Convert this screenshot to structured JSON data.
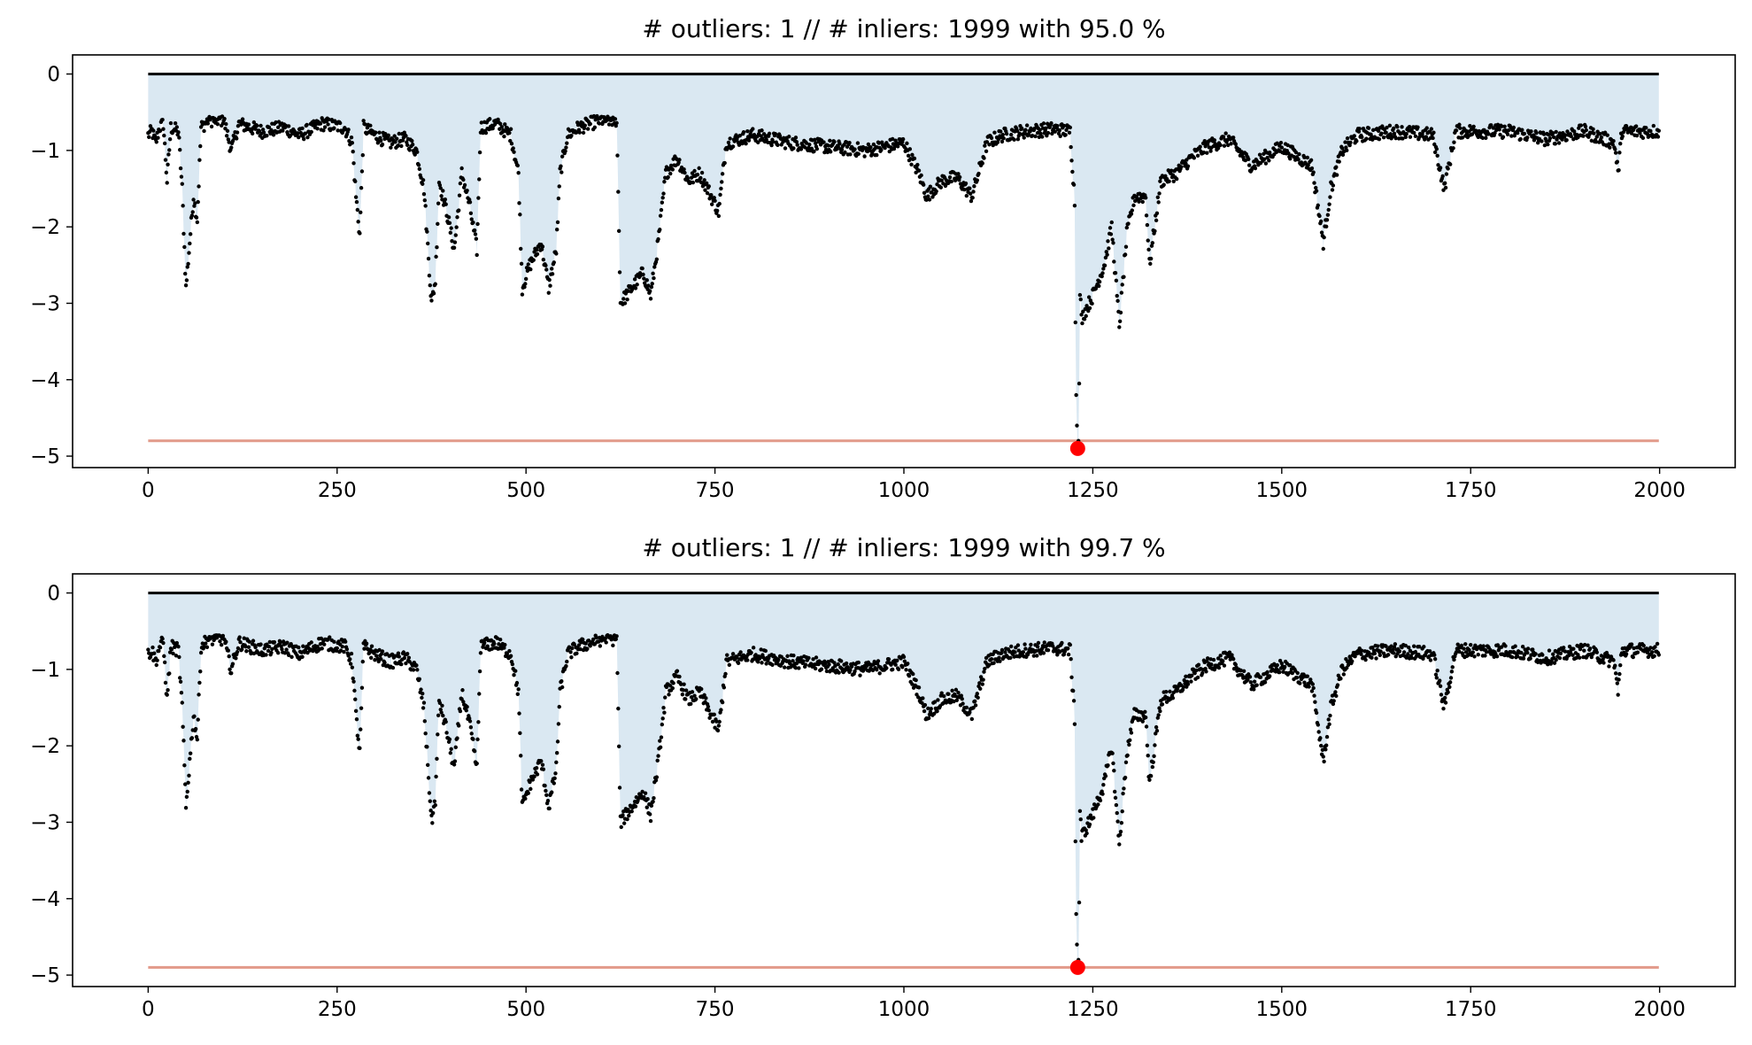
{
  "colors": {
    "points": "#000000",
    "fill": "#dae8f2",
    "threshold": "#e29a8a",
    "baseline": "#000000",
    "outlier": "#ff0000"
  },
  "chart_data": [
    {
      "type": "scatter",
      "title": "# outliers: 1 // # inliers: 1999 with 95.0 %",
      "xlim": [
        -100,
        2100
      ],
      "ylim": [
        -5.15,
        0.25
      ],
      "x_ticks": [
        0,
        250,
        500,
        750,
        1000,
        1250,
        1500,
        1750,
        2000
      ],
      "y_ticks": [
        0,
        -1,
        -2,
        -3,
        -4,
        -5
      ],
      "threshold": -4.8,
      "baseline": 0,
      "outliers": [
        {
          "x": 1230,
          "y": -4.9
        }
      ],
      "n_points": 2000,
      "profile": [
        [
          0,
          -0.8
        ],
        [
          5,
          -0.75
        ],
        [
          10,
          -0.9
        ],
        [
          15,
          -0.7
        ],
        [
          20,
          -0.65
        ],
        [
          25,
          -1.4
        ],
        [
          30,
          -0.7
        ],
        [
          40,
          -0.75
        ],
        [
          45,
          -1.5
        ],
        [
          50,
          -2.8
        ],
        [
          55,
          -2.2
        ],
        [
          60,
          -1.6
        ],
        [
          65,
          -1.9
        ],
        [
          70,
          -0.7
        ],
        [
          80,
          -0.6
        ],
        [
          100,
          -0.6
        ],
        [
          110,
          -1.0
        ],
        [
          120,
          -0.65
        ],
        [
          150,
          -0.75
        ],
        [
          180,
          -0.7
        ],
        [
          200,
          -0.8
        ],
        [
          230,
          -0.65
        ],
        [
          260,
          -0.7
        ],
        [
          270,
          -0.9
        ],
        [
          275,
          -1.6
        ],
        [
          280,
          -2.1
        ],
        [
          285,
          -0.7
        ],
        [
          300,
          -0.8
        ],
        [
          320,
          -0.9
        ],
        [
          340,
          -0.85
        ],
        [
          355,
          -1.0
        ],
        [
          365,
          -1.5
        ],
        [
          375,
          -3.0
        ],
        [
          380,
          -2.7
        ],
        [
          385,
          -1.4
        ],
        [
          395,
          -1.8
        ],
        [
          405,
          -2.3
        ],
        [
          415,
          -1.3
        ],
        [
          425,
          -1.7
        ],
        [
          435,
          -2.3
        ],
        [
          440,
          -0.7
        ],
        [
          460,
          -0.65
        ],
        [
          480,
          -0.8
        ],
        [
          490,
          -1.3
        ],
        [
          495,
          -2.8
        ],
        [
          505,
          -2.5
        ],
        [
          520,
          -2.2
        ],
        [
          530,
          -2.8
        ],
        [
          540,
          -2.3
        ],
        [
          545,
          -1.3
        ],
        [
          555,
          -0.8
        ],
        [
          570,
          -0.7
        ],
        [
          600,
          -0.6
        ],
        [
          620,
          -0.6
        ],
        [
          625,
          -3.0
        ],
        [
          640,
          -2.8
        ],
        [
          655,
          -2.6
        ],
        [
          665,
          -2.9
        ],
        [
          675,
          -2.2
        ],
        [
          685,
          -1.3
        ],
        [
          700,
          -1.1
        ],
        [
          715,
          -1.4
        ],
        [
          730,
          -1.3
        ],
        [
          745,
          -1.6
        ],
        [
          755,
          -1.8
        ],
        [
          765,
          -0.9
        ],
        [
          800,
          -0.8
        ],
        [
          850,
          -0.9
        ],
        [
          900,
          -0.95
        ],
        [
          950,
          -1.0
        ],
        [
          1000,
          -0.9
        ],
        [
          1020,
          -1.3
        ],
        [
          1030,
          -1.6
        ],
        [
          1050,
          -1.4
        ],
        [
          1070,
          -1.35
        ],
        [
          1090,
          -1.6
        ],
        [
          1110,
          -0.9
        ],
        [
          1130,
          -0.8
        ],
        [
          1160,
          -0.75
        ],
        [
          1200,
          -0.72
        ],
        [
          1220,
          -0.75
        ],
        [
          1225,
          -1.5
        ],
        [
          1230,
          -2.3
        ],
        [
          1235,
          -3.2
        ],
        [
          1250,
          -2.9
        ],
        [
          1265,
          -2.5
        ],
        [
          1275,
          -2.0
        ],
        [
          1285,
          -3.3
        ],
        [
          1295,
          -2.1
        ],
        [
          1305,
          -1.6
        ],
        [
          1320,
          -1.6
        ],
        [
          1325,
          -2.5
        ],
        [
          1340,
          -1.4
        ],
        [
          1360,
          -1.3
        ],
        [
          1380,
          -1.1
        ],
        [
          1400,
          -0.95
        ],
        [
          1430,
          -0.85
        ],
        [
          1460,
          -1.2
        ],
        [
          1500,
          -0.95
        ],
        [
          1540,
          -1.2
        ],
        [
          1555,
          -2.2
        ],
        [
          1565,
          -1.5
        ],
        [
          1580,
          -1.0
        ],
        [
          1600,
          -0.8
        ],
        [
          1650,
          -0.75
        ],
        [
          1700,
          -0.8
        ],
        [
          1715,
          -1.5
        ],
        [
          1730,
          -0.75
        ],
        [
          1800,
          -0.75
        ],
        [
          1850,
          -0.85
        ],
        [
          1900,
          -0.75
        ],
        [
          1940,
          -0.9
        ],
        [
          1945,
          -1.3
        ],
        [
          1950,
          -0.75
        ],
        [
          2000,
          -0.75
        ]
      ]
    },
    {
      "type": "scatter",
      "title": "# outliers: 1 // # inliers: 1999 with 99.7 %",
      "xlim": [
        -100,
        2100
      ],
      "ylim": [
        -5.15,
        0.25
      ],
      "x_ticks": [
        0,
        250,
        500,
        750,
        1000,
        1250,
        1500,
        1750,
        2000
      ],
      "y_ticks": [
        0,
        -1,
        -2,
        -3,
        -4,
        -5
      ],
      "threshold": -4.9,
      "baseline": 0,
      "outliers": [
        {
          "x": 1230,
          "y": -4.9
        }
      ],
      "n_points": 2000,
      "profile": [
        [
          0,
          -0.8
        ],
        [
          5,
          -0.75
        ],
        [
          10,
          -0.9
        ],
        [
          15,
          -0.7
        ],
        [
          20,
          -0.65
        ],
        [
          25,
          -1.4
        ],
        [
          30,
          -0.7
        ],
        [
          40,
          -0.75
        ],
        [
          45,
          -1.5
        ],
        [
          50,
          -2.8
        ],
        [
          55,
          -2.2
        ],
        [
          60,
          -1.6
        ],
        [
          65,
          -1.9
        ],
        [
          70,
          -0.7
        ],
        [
          80,
          -0.6
        ],
        [
          100,
          -0.6
        ],
        [
          110,
          -1.0
        ],
        [
          120,
          -0.65
        ],
        [
          150,
          -0.75
        ],
        [
          180,
          -0.7
        ],
        [
          200,
          -0.8
        ],
        [
          230,
          -0.65
        ],
        [
          260,
          -0.7
        ],
        [
          270,
          -0.9
        ],
        [
          275,
          -1.6
        ],
        [
          280,
          -2.1
        ],
        [
          285,
          -0.7
        ],
        [
          300,
          -0.8
        ],
        [
          320,
          -0.9
        ],
        [
          340,
          -0.85
        ],
        [
          355,
          -1.0
        ],
        [
          365,
          -1.5
        ],
        [
          375,
          -3.0
        ],
        [
          380,
          -2.7
        ],
        [
          385,
          -1.4
        ],
        [
          395,
          -1.8
        ],
        [
          405,
          -2.3
        ],
        [
          415,
          -1.3
        ],
        [
          425,
          -1.7
        ],
        [
          435,
          -2.3
        ],
        [
          440,
          -0.7
        ],
        [
          460,
          -0.65
        ],
        [
          480,
          -0.8
        ],
        [
          490,
          -1.3
        ],
        [
          495,
          -2.8
        ],
        [
          505,
          -2.5
        ],
        [
          520,
          -2.2
        ],
        [
          530,
          -2.8
        ],
        [
          540,
          -2.3
        ],
        [
          545,
          -1.3
        ],
        [
          555,
          -0.8
        ],
        [
          570,
          -0.7
        ],
        [
          600,
          -0.6
        ],
        [
          620,
          -0.6
        ],
        [
          625,
          -3.0
        ],
        [
          640,
          -2.8
        ],
        [
          655,
          -2.6
        ],
        [
          665,
          -2.9
        ],
        [
          675,
          -2.2
        ],
        [
          685,
          -1.3
        ],
        [
          700,
          -1.1
        ],
        [
          715,
          -1.4
        ],
        [
          730,
          -1.3
        ],
        [
          745,
          -1.6
        ],
        [
          755,
          -1.8
        ],
        [
          765,
          -0.9
        ],
        [
          800,
          -0.8
        ],
        [
          850,
          -0.9
        ],
        [
          900,
          -0.95
        ],
        [
          950,
          -1.0
        ],
        [
          1000,
          -0.9
        ],
        [
          1020,
          -1.3
        ],
        [
          1030,
          -1.6
        ],
        [
          1050,
          -1.4
        ],
        [
          1070,
          -1.35
        ],
        [
          1090,
          -1.6
        ],
        [
          1110,
          -0.9
        ],
        [
          1130,
          -0.8
        ],
        [
          1160,
          -0.75
        ],
        [
          1200,
          -0.72
        ],
        [
          1220,
          -0.75
        ],
        [
          1225,
          -1.5
        ],
        [
          1230,
          -2.3
        ],
        [
          1235,
          -3.2
        ],
        [
          1250,
          -2.9
        ],
        [
          1265,
          -2.5
        ],
        [
          1275,
          -2.0
        ],
        [
          1285,
          -3.3
        ],
        [
          1295,
          -2.1
        ],
        [
          1305,
          -1.6
        ],
        [
          1320,
          -1.6
        ],
        [
          1325,
          -2.5
        ],
        [
          1340,
          -1.4
        ],
        [
          1360,
          -1.3
        ],
        [
          1380,
          -1.1
        ],
        [
          1400,
          -0.95
        ],
        [
          1430,
          -0.85
        ],
        [
          1460,
          -1.2
        ],
        [
          1500,
          -0.95
        ],
        [
          1540,
          -1.2
        ],
        [
          1555,
          -2.2
        ],
        [
          1565,
          -1.5
        ],
        [
          1580,
          -1.0
        ],
        [
          1600,
          -0.8
        ],
        [
          1650,
          -0.75
        ],
        [
          1700,
          -0.8
        ],
        [
          1715,
          -1.5
        ],
        [
          1730,
          -0.75
        ],
        [
          1800,
          -0.75
        ],
        [
          1850,
          -0.85
        ],
        [
          1900,
          -0.75
        ],
        [
          1940,
          -0.9
        ],
        [
          1945,
          -1.3
        ],
        [
          1950,
          -0.75
        ],
        [
          2000,
          -0.75
        ]
      ]
    }
  ]
}
